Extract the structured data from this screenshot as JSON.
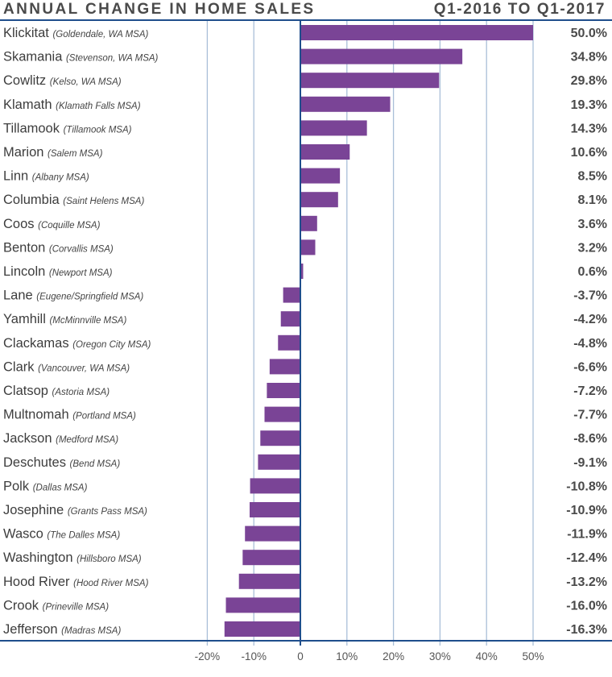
{
  "header": {
    "title": "ANNUAL CHANGE IN HOME SALES",
    "period": "Q1-2016 TO Q1-2017"
  },
  "colors": {
    "bar": "#7a4496",
    "axis": "#1f4e8c",
    "grid": "#a9bfd8",
    "text": "#444444"
  },
  "chart_data": {
    "type": "bar",
    "orientation": "horizontal",
    "title": "ANNUAL CHANGE IN HOME SALES",
    "subtitle": "Q1-2016 TO Q1-2017",
    "xlabel": "",
    "ylabel": "",
    "xlim": [
      -25,
      50
    ],
    "xticks": [
      -20,
      -10,
      0,
      10,
      20,
      30,
      40,
      50
    ],
    "xtick_labels": [
      "-20%",
      "-10%",
      "0",
      "10%",
      "20%",
      "30%",
      "40%",
      "50%"
    ],
    "grid": true,
    "legend": "none",
    "categories": [
      {
        "name": "Klickitat",
        "msa": "(Goldendale, WA MSA)"
      },
      {
        "name": "Skamania",
        "msa": "(Stevenson, WA MSA)"
      },
      {
        "name": "Cowlitz",
        "msa": "(Kelso, WA MSA)"
      },
      {
        "name": "Klamath",
        "msa": "(Klamath Falls MSA)"
      },
      {
        "name": "Tillamook",
        "msa": "(Tillamook MSA)"
      },
      {
        "name": "Marion",
        "msa": "(Salem MSA)"
      },
      {
        "name": "Linn",
        "msa": "(Albany MSA)"
      },
      {
        "name": "Columbia",
        "msa": "(Saint Helens MSA)"
      },
      {
        "name": "Coos",
        "msa": "(Coquille MSA)"
      },
      {
        "name": "Benton",
        "msa": "(Corvallis MSA)"
      },
      {
        "name": "Lincoln",
        "msa": "(Newport MSA)"
      },
      {
        "name": "Lane",
        "msa": "(Eugene/Springfield MSA)"
      },
      {
        "name": "Yamhill",
        "msa": "(McMinnville MSA)"
      },
      {
        "name": "Clackamas",
        "msa": "(Oregon City MSA)"
      },
      {
        "name": "Clark",
        "msa": "(Vancouver, WA MSA)"
      },
      {
        "name": "Clatsop",
        "msa": "(Astoria MSA)"
      },
      {
        "name": "Multnomah",
        "msa": "(Portland MSA)"
      },
      {
        "name": "Jackson",
        "msa": "(Medford MSA)"
      },
      {
        "name": "Deschutes",
        "msa": "(Bend MSA)"
      },
      {
        "name": "Polk",
        "msa": "(Dallas MSA)"
      },
      {
        "name": "Josephine",
        "msa": "(Grants Pass MSA)"
      },
      {
        "name": "Wasco",
        "msa": "(The Dalles MSA)"
      },
      {
        "name": "Washington",
        "msa": "(Hillsboro MSA)"
      },
      {
        "name": "Hood River",
        "msa": "(Hood River MSA)"
      },
      {
        "name": "Crook",
        "msa": "(Prineville MSA)"
      },
      {
        "name": "Jefferson",
        "msa": "(Madras MSA)"
      }
    ],
    "values": [
      50.0,
      34.8,
      29.8,
      19.3,
      14.3,
      10.6,
      8.5,
      8.1,
      3.6,
      3.2,
      0.6,
      -3.7,
      -4.2,
      -4.8,
      -6.6,
      -7.2,
      -7.7,
      -8.6,
      -9.1,
      -10.8,
      -10.9,
      -11.9,
      -12.4,
      -13.2,
      -16.0,
      -16.3
    ],
    "value_labels": [
      "50.0%",
      "34.8%",
      "29.8%",
      "19.3%",
      "14.3%",
      "10.6%",
      "8.5%",
      "8.1%",
      "3.6%",
      "3.2%",
      "0.6%",
      "-3.7%",
      "-4.2%",
      "-4.8%",
      "-6.6%",
      "-7.2%",
      "-7.7%",
      "-8.6%",
      "-9.1%",
      "-10.8%",
      "-10.9%",
      "-11.9%",
      "-12.4%",
      "-13.2%",
      "-16.0%",
      "-16.3%"
    ]
  }
}
